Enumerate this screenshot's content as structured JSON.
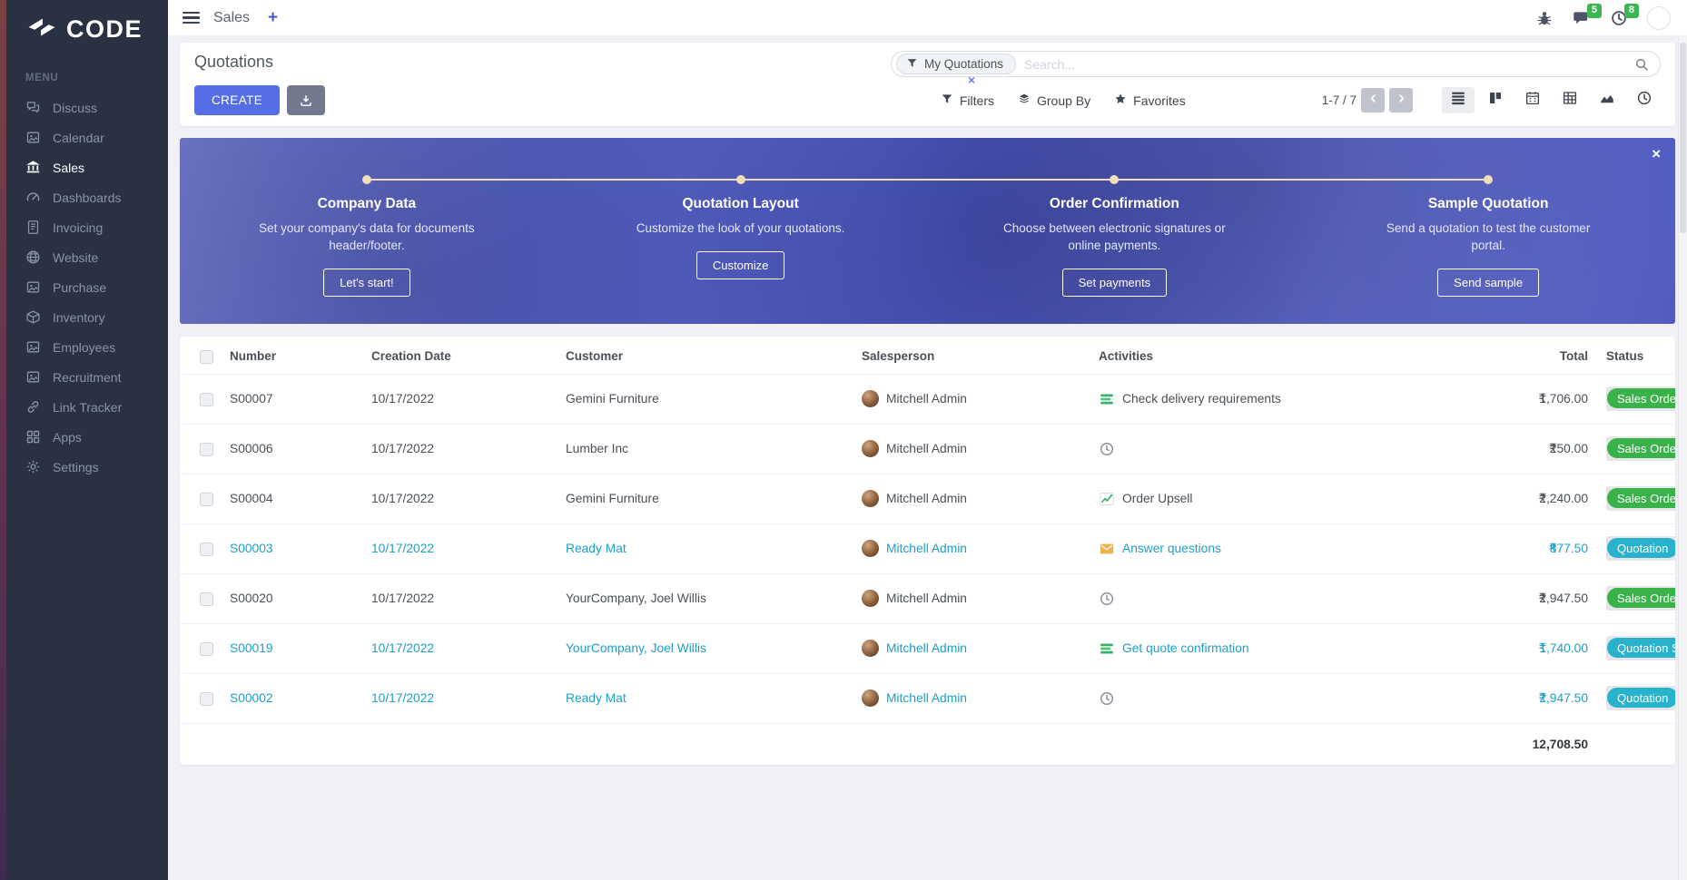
{
  "colors": {
    "accent": "#556ee6",
    "sidebar_bg": "#2a3142",
    "badge_green": "#38b249",
    "badge_blue": "#29b2cb",
    "quotation_link_blue": "#1d9fc7",
    "banner_dot": "#f1ddb8",
    "notification_green": "#3cb552"
  },
  "brand": {
    "logo_text": "CODE"
  },
  "sidebar": {
    "menu_label": "MENU",
    "items": [
      {
        "label": "Discuss",
        "icon": "comments",
        "active": false
      },
      {
        "label": "Calendar",
        "icon": "image-placeholder",
        "active": false
      },
      {
        "label": "Sales",
        "icon": "bank",
        "active": true
      },
      {
        "label": "Dashboards",
        "icon": "gauge",
        "active": false
      },
      {
        "label": "Invoicing",
        "icon": "file-invoice",
        "active": false
      },
      {
        "label": "Website",
        "icon": "globe",
        "active": false
      },
      {
        "label": "Purchase",
        "icon": "image-placeholder",
        "active": false
      },
      {
        "label": "Inventory",
        "icon": "box",
        "active": false
      },
      {
        "label": "Employees",
        "icon": "image-placeholder",
        "active": false
      },
      {
        "label": "Recruitment",
        "icon": "image-placeholder",
        "active": false
      },
      {
        "label": "Link Tracker",
        "icon": "link",
        "active": false
      },
      {
        "label": "Apps",
        "icon": "grid",
        "active": false
      },
      {
        "label": "Settings",
        "icon": "gear",
        "active": false
      }
    ]
  },
  "topbar": {
    "app_name": "Sales",
    "new_tab_label": "+",
    "messages_count": "5",
    "activities_count": "8"
  },
  "control": {
    "title": "Quotations",
    "create_label": "CREATE",
    "search": {
      "facet_label": "My Quotations",
      "facet_remove_icon": "×",
      "placeholder": "Search..."
    },
    "filters_label": "Filters",
    "group_by_label": "Group By",
    "favorites_label": "Favorites",
    "pager": "1-7 / 7",
    "view_switcher": [
      {
        "name": "list",
        "active": true
      },
      {
        "name": "kanban",
        "active": false
      },
      {
        "name": "calendar",
        "active": false
      },
      {
        "name": "pivot",
        "active": false
      },
      {
        "name": "graph",
        "active": false
      },
      {
        "name": "activity",
        "active": false
      }
    ]
  },
  "banner": {
    "close_icon": "×",
    "steps": [
      {
        "title": "Company Data",
        "description": "Set your company's data for documents header/footer.",
        "button": "Let's start!"
      },
      {
        "title": "Quotation Layout",
        "description": "Customize the look of your quotations.",
        "button": "Customize"
      },
      {
        "title": "Order Confirmation",
        "description": "Choose between electronic signatures or online payments.",
        "button": "Set payments"
      },
      {
        "title": "Sample Quotation",
        "description": "Send a quotation to test the customer portal.",
        "button": "Send sample"
      }
    ]
  },
  "table": {
    "columns": [
      "Number",
      "Creation Date",
      "Customer",
      "Salesperson",
      "Activities",
      "Total",
      "Status"
    ],
    "rows": [
      {
        "number": "S00007",
        "date": "10/17/2022",
        "customer": "Gemini Furniture",
        "salesperson": "Mitchell Admin",
        "activity": {
          "icon": "tasks",
          "label": "Check delivery requirements"
        },
        "currency": "₹",
        "total": "1,706.00",
        "status": "Sales Order",
        "status_color": "green",
        "highlight": false
      },
      {
        "number": "S00006",
        "date": "10/17/2022",
        "customer": "Lumber Inc",
        "salesperson": "Mitchell Admin",
        "activity": {
          "icon": "clock",
          "label": ""
        },
        "currency": "₹",
        "total": "250.00",
        "status": "Sales Order",
        "status_color": "green",
        "highlight": false
      },
      {
        "number": "S00004",
        "date": "10/17/2022",
        "customer": "Gemini Furniture",
        "salesperson": "Mitchell Admin",
        "activity": {
          "icon": "chart",
          "label": "Order Upsell"
        },
        "currency": "₹",
        "total": "2,240.00",
        "status": "Sales Order",
        "status_color": "green",
        "highlight": false
      },
      {
        "number": "S00003",
        "date": "10/17/2022",
        "customer": "Ready Mat",
        "salesperson": "Mitchell Admin",
        "activity": {
          "icon": "envelope",
          "label": "Answer questions"
        },
        "currency": "₹",
        "total": "877.50",
        "status": "Quotation",
        "status_color": "blue",
        "highlight": true
      },
      {
        "number": "S00020",
        "date": "10/17/2022",
        "customer": "YourCompany, Joel Willis",
        "salesperson": "Mitchell Admin",
        "activity": {
          "icon": "clock",
          "label": ""
        },
        "currency": "₹",
        "total": "2,947.50",
        "status": "Sales Order",
        "status_color": "green",
        "highlight": false
      },
      {
        "number": "S00019",
        "date": "10/17/2022",
        "customer": "YourCompany, Joel Willis",
        "salesperson": "Mitchell Admin",
        "activity": {
          "icon": "tasks",
          "label": "Get quote confirmation"
        },
        "currency": "₹",
        "total": "1,740.00",
        "status": "Quotation Sent",
        "status_color": "blue",
        "highlight": true
      },
      {
        "number": "S00002",
        "date": "10/17/2022",
        "customer": "Ready Mat",
        "salesperson": "Mitchell Admin",
        "activity": {
          "icon": "clock",
          "label": ""
        },
        "currency": "₹",
        "total": "2,947.50",
        "status": "Quotation",
        "status_color": "blue",
        "highlight": true
      }
    ],
    "footer_total": "12,708.50"
  }
}
